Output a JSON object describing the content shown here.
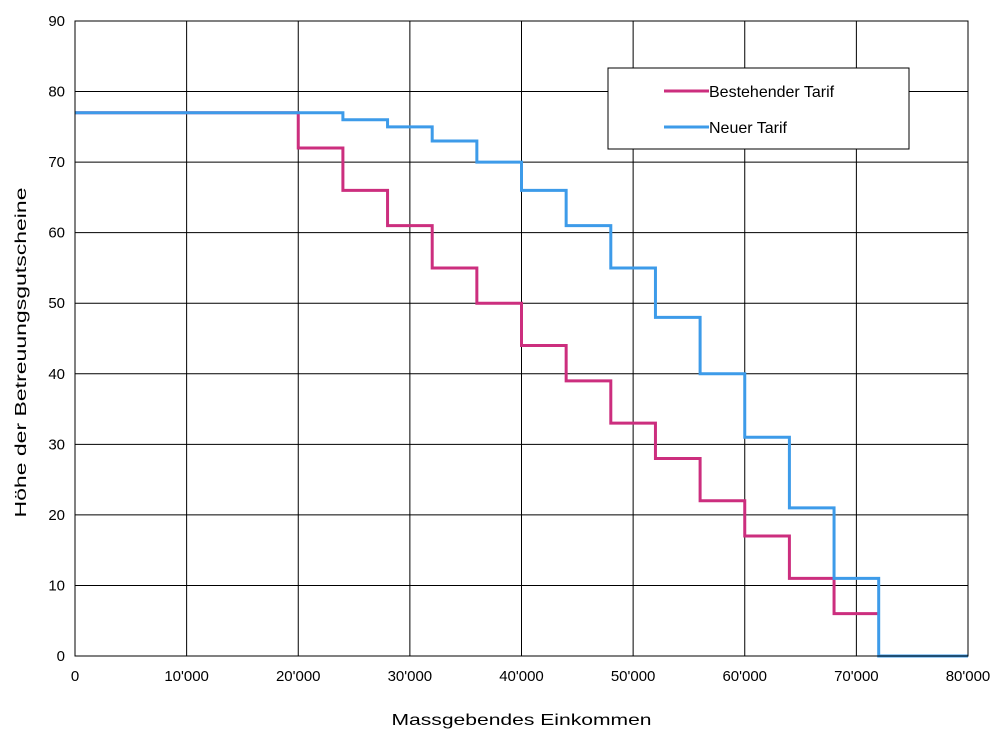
{
  "chart_data": {
    "type": "line",
    "step": true,
    "xlabel": "Massgebendes Einkommen",
    "ylabel": "Höhe der Betreuungsgutscheine",
    "xlim": [
      0,
      80000
    ],
    "ylim": [
      0,
      90
    ],
    "x_ticks": [
      0,
      10000,
      20000,
      30000,
      40000,
      50000,
      60000,
      70000,
      80000
    ],
    "x_tick_labels": [
      "0",
      "10'000",
      "20'000",
      "30'000",
      "40'000",
      "50'000",
      "60'000",
      "70'000",
      "80'000"
    ],
    "y_ticks": [
      0,
      10,
      20,
      30,
      40,
      50,
      60,
      70,
      80,
      90
    ],
    "y_tick_labels": [
      "0",
      "10",
      "20",
      "30",
      "40",
      "50",
      "60",
      "70",
      "80",
      "90"
    ],
    "grid": true,
    "legend_position": "top-right",
    "series": [
      {
        "name": "Bestehender Tarif",
        "color": "#cc2e7e",
        "x": [
          0,
          20000,
          24000,
          28000,
          32000,
          36000,
          40000,
          44000,
          48000,
          52000,
          56000,
          60000,
          64000,
          68000,
          72000
        ],
        "y": [
          77,
          72,
          66,
          61,
          55,
          50,
          44,
          39,
          33,
          28,
          22,
          17,
          11,
          6,
          6
        ]
      },
      {
        "name": "Neuer Tarif",
        "color": "#3d9be9",
        "x": [
          0,
          24000,
          28000,
          32000,
          36000,
          40000,
          44000,
          48000,
          52000,
          56000,
          60000,
          64000,
          68000,
          72000,
          80000
        ],
        "y": [
          77,
          76,
          75,
          73,
          70,
          66,
          61,
          55,
          48,
          40,
          31,
          21,
          11,
          0,
          0
        ]
      }
    ]
  }
}
